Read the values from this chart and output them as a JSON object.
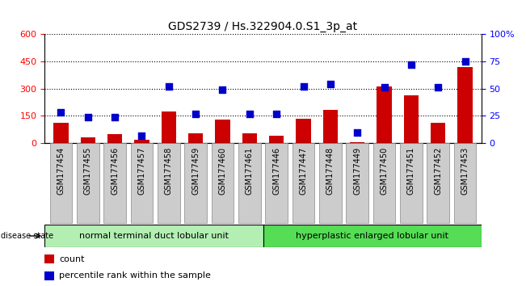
{
  "title": "GDS2739 / Hs.322904.0.S1_3p_at",
  "samples": [
    "GSM177454",
    "GSM177455",
    "GSM177456",
    "GSM177457",
    "GSM177458",
    "GSM177459",
    "GSM177460",
    "GSM177461",
    "GSM177446",
    "GSM177447",
    "GSM177448",
    "GSM177449",
    "GSM177450",
    "GSM177451",
    "GSM177452",
    "GSM177453"
  ],
  "counts": [
    110,
    30,
    50,
    20,
    175,
    55,
    130,
    55,
    40,
    135,
    185,
    5,
    310,
    265,
    110,
    420
  ],
  "percentiles": [
    28,
    24,
    24,
    7,
    52,
    27,
    49,
    27,
    27,
    52,
    54,
    10,
    51,
    72,
    51,
    75
  ],
  "group1_label": "normal terminal duct lobular unit",
  "group2_label": "hyperplastic enlarged lobular unit",
  "group1_count": 8,
  "group2_count": 8,
  "bar_color": "#cc0000",
  "dot_color": "#0000cc",
  "left_ylim": [
    0,
    600
  ],
  "right_ylim": [
    0,
    100
  ],
  "left_yticks": [
    0,
    150,
    300,
    450,
    600
  ],
  "right_yticks": [
    0,
    25,
    50,
    75,
    100
  ],
  "right_yticklabels": [
    "0",
    "25",
    "50",
    "75",
    "100%"
  ],
  "group1_color": "#b3efb3",
  "group2_color": "#55dd55",
  "legend_count_label": "count",
  "legend_pct_label": "percentile rank within the sample",
  "disease_state_label": "disease state",
  "dot_size": 35,
  "bar_width": 0.55,
  "title_fontsize": 10,
  "tick_fontsize": 7,
  "axis_fontsize": 8
}
